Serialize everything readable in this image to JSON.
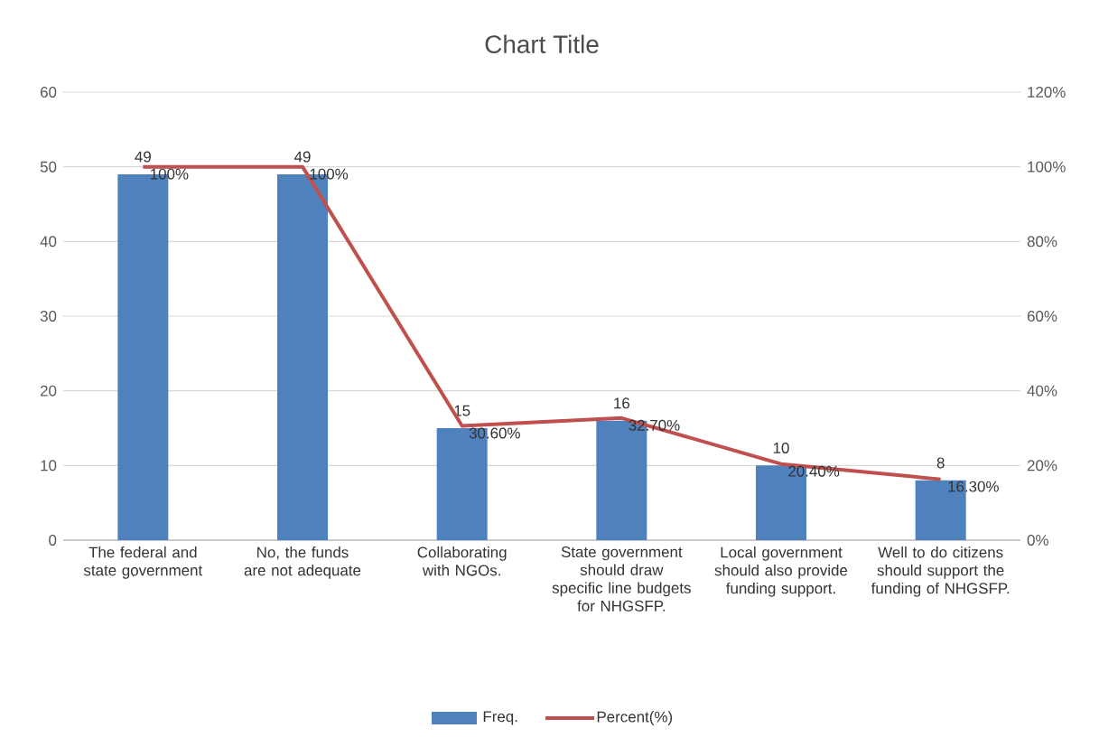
{
  "chart_data": {
    "type": "bar",
    "title": "Chart Title",
    "categories": [
      "The federal and state government",
      "No, the funds are not adequate",
      "Collaborating with NGOs.",
      "State government should draw specific line budgets for NHGSFP.",
      "Local government should also provide funding support.",
      "Well to do citizens should support the funding of NHGSFP."
    ],
    "series": [
      {
        "name": "Freq.",
        "type": "bar",
        "color": "#4f81bd",
        "values": [
          49,
          49,
          15,
          16,
          10,
          8
        ],
        "value_labels": [
          "49",
          "49",
          "15",
          "16",
          "10",
          "8"
        ]
      },
      {
        "name": "Percent(%)",
        "type": "line",
        "axis": "y2",
        "color": "#c0504d",
        "values": [
          100,
          100,
          30.6,
          32.7,
          20.4,
          16.3
        ],
        "value_labels": [
          "100%",
          "100%",
          "30.60%",
          "32.70%",
          "20.40%",
          "16.30%"
        ]
      }
    ],
    "ylim": [
      0,
      60
    ],
    "yticks": [
      0,
      10,
      20,
      30,
      40,
      50,
      60
    ],
    "y2lim": [
      0,
      120
    ],
    "y2ticks": [
      {
        "value": 0,
        "label": "0%"
      },
      {
        "value": 20,
        "label": "20%"
      },
      {
        "value": 40,
        "label": "40%"
      },
      {
        "value": 60,
        "label": "60%"
      },
      {
        "value": 80,
        "label": "80%"
      },
      {
        "value": 100,
        "label": "100%"
      },
      {
        "value": 120,
        "label": "120%"
      }
    ],
    "grid": "y",
    "legend": "bottom"
  }
}
